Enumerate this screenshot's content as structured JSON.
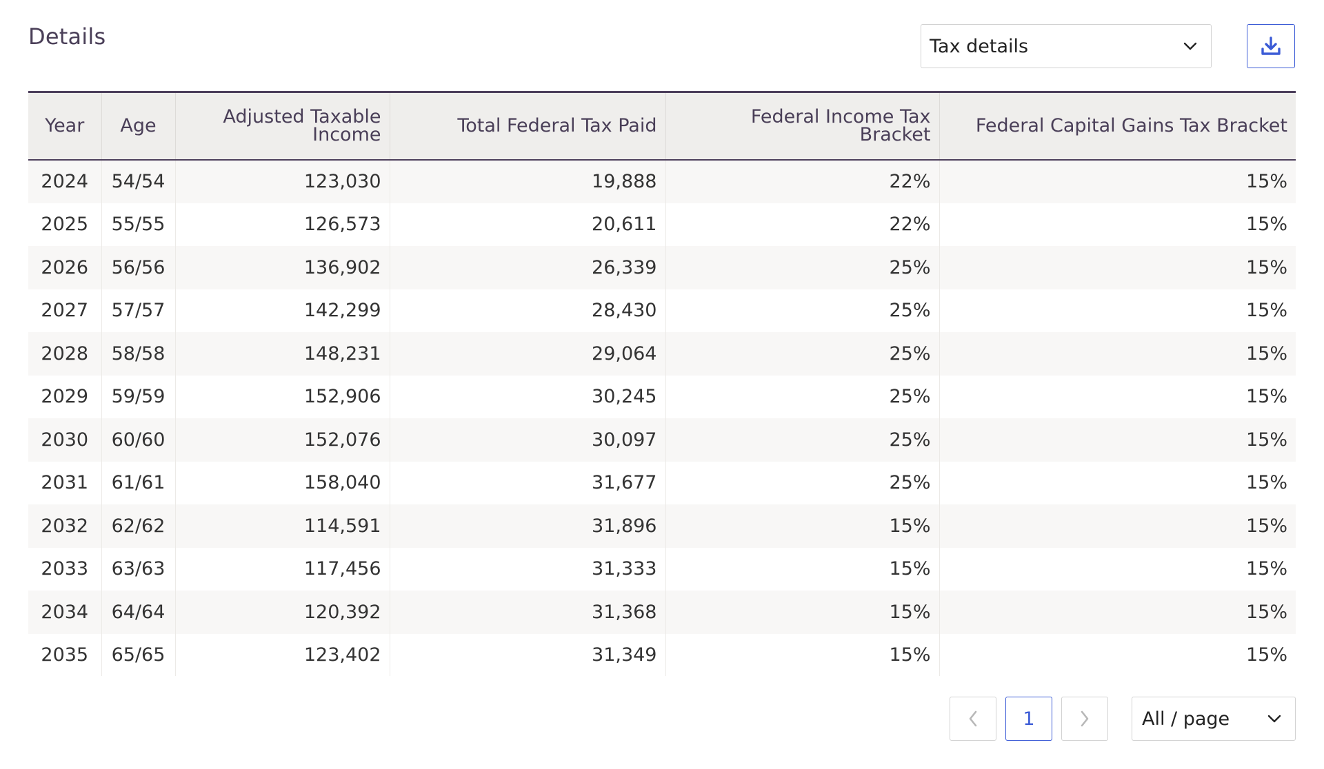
{
  "section": {
    "title": "Details"
  },
  "view_select": {
    "value": "Tax details"
  },
  "download": {
    "icon": "download-icon"
  },
  "table": {
    "columns": [
      {
        "label": "Year"
      },
      {
        "label": "Age"
      },
      {
        "label": "Adjusted Taxable Income"
      },
      {
        "label": "Total Federal Tax Paid"
      },
      {
        "label": "Federal Income Tax Bracket"
      },
      {
        "label": "Federal Capital Gains Tax Bracket"
      }
    ],
    "rows": [
      [
        "2024",
        "54/54",
        "123,030",
        "19,888",
        "22%",
        "15%"
      ],
      [
        "2025",
        "55/55",
        "126,573",
        "20,611",
        "22%",
        "15%"
      ],
      [
        "2026",
        "56/56",
        "136,902",
        "26,339",
        "25%",
        "15%"
      ],
      [
        "2027",
        "57/57",
        "142,299",
        "28,430",
        "25%",
        "15%"
      ],
      [
        "2028",
        "58/58",
        "148,231",
        "29,064",
        "25%",
        "15%"
      ],
      [
        "2029",
        "59/59",
        "152,906",
        "30,245",
        "25%",
        "15%"
      ],
      [
        "2030",
        "60/60",
        "152,076",
        "30,097",
        "25%",
        "15%"
      ],
      [
        "2031",
        "61/61",
        "158,040",
        "31,677",
        "25%",
        "15%"
      ],
      [
        "2032",
        "62/62",
        "114,591",
        "31,896",
        "15%",
        "15%"
      ],
      [
        "2033",
        "63/63",
        "117,456",
        "31,333",
        "15%",
        "15%"
      ],
      [
        "2034",
        "64/64",
        "120,392",
        "31,368",
        "15%",
        "15%"
      ],
      [
        "2035",
        "65/65",
        "123,402",
        "31,349",
        "15%",
        "15%"
      ]
    ]
  },
  "pagination": {
    "current_page": "1",
    "page_size": "All / page"
  },
  "colors": {
    "accent": "#3b5bd6",
    "header_text": "#4a3f58",
    "header_border": "#4d3f5c"
  }
}
